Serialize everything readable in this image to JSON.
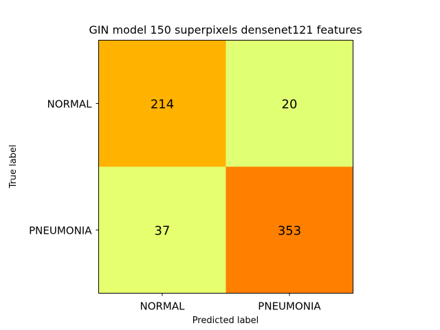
{
  "chart_data": {
    "type": "heatmap",
    "title": "GIN model 150 superpixels densenet121 features",
    "xlabel": "Predicted label",
    "ylabel": "True label",
    "x_categories": [
      "NORMAL",
      "PNEUMONIA"
    ],
    "y_categories": [
      "NORMAL",
      "PNEUMONIA"
    ],
    "values": [
      [
        214,
        20
      ],
      [
        37,
        353
      ]
    ],
    "cell_colors": [
      [
        "#ffb200",
        "#e1ff72"
      ],
      [
        "#e6ff6f",
        "#ff7f00"
      ]
    ],
    "colormap": "Wistia",
    "grid": false
  }
}
